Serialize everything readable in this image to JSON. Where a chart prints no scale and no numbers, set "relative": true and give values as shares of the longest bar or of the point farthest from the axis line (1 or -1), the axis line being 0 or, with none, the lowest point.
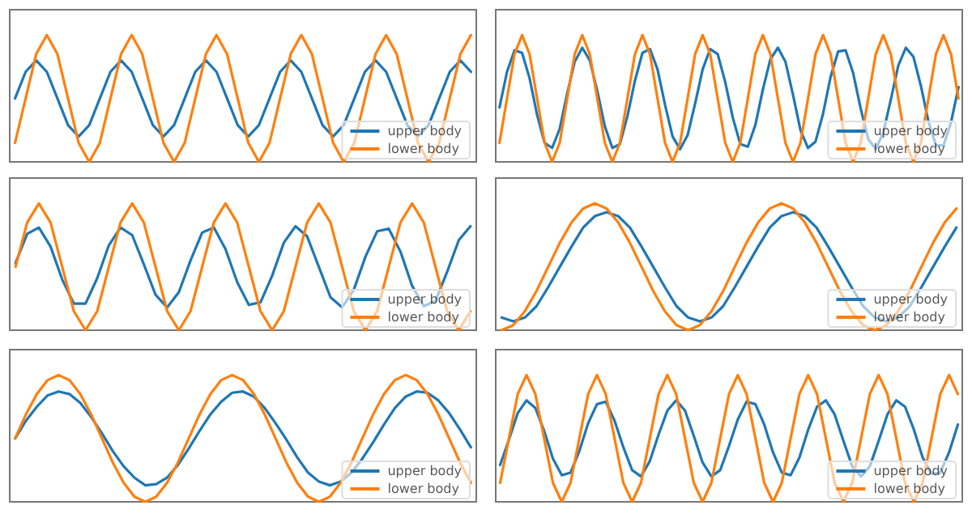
{
  "chart_data": [
    {
      "type": "line",
      "relative": true,
      "tick_labels": false,
      "grid": false,
      "legend": "bottom right",
      "categories": [
        null,
        null,
        null,
        null,
        null,
        null,
        null,
        null,
        null,
        null,
        null,
        null,
        null,
        null,
        null,
        null,
        null,
        null,
        null,
        null,
        null,
        null,
        null,
        null,
        null,
        null,
        null,
        null,
        null,
        null,
        null,
        null,
        null,
        null,
        null,
        null,
        null,
        null,
        null,
        null,
        null,
        null,
        null,
        null
      ],
      "series": [
        {
          "name": "upper body",
          "color": "#1f77b4",
          "values": [
            0.5,
            0.71,
            0.8,
            0.71,
            0.5,
            0.29,
            0.2,
            0.29,
            0.5,
            0.71,
            0.8,
            0.71,
            0.5,
            0.29,
            0.2,
            0.29,
            0.5,
            0.71,
            0.8,
            0.71,
            0.5,
            0.29,
            0.2,
            0.29,
            0.5,
            0.71,
            0.8,
            0.71,
            0.5,
            0.29,
            0.2,
            0.29,
            0.5,
            0.71,
            0.8,
            0.71,
            0.5,
            0.29,
            0.2,
            0.29,
            0.5,
            0.71,
            0.8,
            0.71
          ]
        },
        {
          "name": "lower body",
          "color": "#ff7f0e",
          "values": [
            0.15,
            0.5,
            0.85,
            1,
            0.85,
            0.5,
            0.15,
            0,
            0.15,
            0.5,
            0.85,
            1,
            0.85,
            0.5,
            0.15,
            0,
            0.15,
            0.5,
            0.85,
            1,
            0.85,
            0.5,
            0.15,
            0,
            0.15,
            0.5,
            0.85,
            1,
            0.85,
            0.5,
            0.15,
            0,
            0.15,
            0.5,
            0.85,
            1,
            0.85,
            0.5,
            0.15,
            0,
            0.15,
            0.5,
            0.85,
            1
          ]
        }
      ]
    },
    {
      "type": "line",
      "relative": true,
      "tick_labels": false,
      "grid": false,
      "legend": "bottom right",
      "categories": [
        null,
        null,
        null,
        null,
        null,
        null,
        null,
        null,
        null,
        null,
        null,
        null,
        null,
        null,
        null,
        null,
        null,
        null,
        null,
        null,
        null,
        null,
        null,
        null,
        null,
        null,
        null,
        null,
        null,
        null,
        null,
        null,
        null,
        null,
        null,
        null,
        null,
        null,
        null,
        null,
        null,
        null,
        null,
        null,
        null,
        null,
        null,
        null,
        null,
        null,
        null,
        null,
        null,
        null,
        null,
        null,
        null,
        null,
        null,
        null,
        null,
        null
      ],
      "series": [
        {
          "name": "upper body",
          "color": "#1f77b4",
          "values": [
            0.43,
            0.71,
            0.88,
            0.86,
            0.66,
            0.37,
            0.15,
            0.11,
            0.26,
            0.54,
            0.79,
            0.9,
            0.8,
            0.56,
            0.28,
            0.11,
            0.14,
            0.36,
            0.64,
            0.86,
            0.89,
            0.73,
            0.45,
            0.2,
            0.1,
            0.21,
            0.46,
            0.73,
            0.89,
            0.85,
            0.63,
            0.35,
            0.14,
            0.12,
            0.29,
            0.57,
            0.81,
            0.9,
            0.79,
            0.53,
            0.25,
            0.11,
            0.16,
            0.38,
            0.67,
            0.87,
            0.88,
            0.7,
            0.42,
            0.18,
            0.1,
            0.23,
            0.49,
            0.76,
            0.9,
            0.83,
            0.6,
            0.32,
            0.13,
            0.13,
            0.31,
            0.59
          ]
        },
        {
          "name": "lower body",
          "color": "#ff7f0e",
          "values": [
            0.15,
            0.5,
            0.85,
            1,
            0.85,
            0.5,
            0.15,
            0,
            0.15,
            0.5,
            0.85,
            1,
            0.85,
            0.5,
            0.15,
            0,
            0.15,
            0.5,
            0.85,
            1,
            0.85,
            0.5,
            0.15,
            0,
            0.15,
            0.5,
            0.85,
            1,
            0.85,
            0.5,
            0.15,
            0,
            0.15,
            0.5,
            0.85,
            1,
            0.85,
            0.5,
            0.15,
            0,
            0.15,
            0.5,
            0.85,
            1,
            0.85,
            0.5,
            0.15,
            0,
            0.15,
            0.5,
            0.85,
            1,
            0.85,
            0.5,
            0.15,
            0,
            0.15,
            0.5,
            0.85,
            1,
            0.85,
            0.5
          ]
        }
      ]
    },
    {
      "type": "line",
      "relative": true,
      "tick_labels": false,
      "grid": false,
      "legend": "bottom right",
      "categories": [
        null,
        null,
        null,
        null,
        null,
        null,
        null,
        null,
        null,
        null,
        null,
        null,
        null,
        null,
        null,
        null,
        null,
        null,
        null,
        null,
        null,
        null,
        null,
        null,
        null,
        null,
        null,
        null,
        null,
        null,
        null,
        null,
        null,
        null,
        null,
        null,
        null,
        null,
        null,
        null
      ],
      "series": [
        {
          "name": "upper body",
          "color": "#1f77b4",
          "values": [
            0.53,
            0.76,
            0.81,
            0.66,
            0.4,
            0.21,
            0.21,
            0.41,
            0.67,
            0.81,
            0.75,
            0.52,
            0.28,
            0.18,
            0.3,
            0.55,
            0.77,
            0.81,
            0.64,
            0.38,
            0.2,
            0.22,
            0.43,
            0.69,
            0.82,
            0.74,
            0.5,
            0.26,
            0.18,
            0.32,
            0.58,
            0.78,
            0.8,
            0.62,
            0.35,
            0.19,
            0.23,
            0.46,
            0.71,
            0.82
          ]
        },
        {
          "name": "lower body",
          "color": "#ff7f0e",
          "values": [
            0.5,
            0.85,
            1,
            0.85,
            0.5,
            0.15,
            0,
            0.15,
            0.5,
            0.85,
            1,
            0.85,
            0.5,
            0.15,
            0,
            0.15,
            0.5,
            0.85,
            1,
            0.85,
            0.5,
            0.15,
            0,
            0.15,
            0.5,
            0.85,
            1,
            0.85,
            0.5,
            0.15,
            0,
            0.15,
            0.5,
            0.85,
            1,
            0.85,
            0.5,
            0.15,
            0,
            0.15
          ]
        }
      ]
    },
    {
      "type": "line",
      "relative": true,
      "tick_labels": false,
      "grid": false,
      "legend": "bottom right",
      "categories": [
        null,
        null,
        null,
        null,
        null,
        null,
        null,
        null,
        null,
        null,
        null,
        null,
        null,
        null,
        null,
        null,
        null,
        null,
        null,
        null,
        null,
        null,
        null,
        null,
        null,
        null,
        null,
        null,
        null,
        null,
        null,
        null,
        null,
        null,
        null,
        null,
        null,
        null,
        null,
        null
      ],
      "series": [
        {
          "name": "upper body",
          "color": "#1f77b4",
          "values": [
            0.1,
            0.07,
            0.1,
            0.19,
            0.34,
            0.5,
            0.66,
            0.81,
            0.9,
            0.93,
            0.9,
            0.81,
            0.66,
            0.5,
            0.34,
            0.19,
            0.1,
            0.07,
            0.1,
            0.19,
            0.34,
            0.5,
            0.66,
            0.81,
            0.9,
            0.93,
            0.9,
            0.81,
            0.66,
            0.5,
            0.34,
            0.19,
            0.1,
            0.07,
            0.1,
            0.19,
            0.34,
            0.5,
            0.66,
            0.81
          ]
        },
        {
          "name": "lower body",
          "color": "#ff7f0e",
          "values": [
            0,
            0.04,
            0.15,
            0.31,
            0.5,
            0.69,
            0.85,
            0.96,
            1,
            0.96,
            0.85,
            0.69,
            0.5,
            0.31,
            0.15,
            0.04,
            0,
            0.04,
            0.15,
            0.31,
            0.5,
            0.69,
            0.85,
            0.96,
            1,
            0.96,
            0.85,
            0.69,
            0.5,
            0.31,
            0.15,
            0.04,
            0,
            0.04,
            0.15,
            0.31,
            0.5,
            0.69,
            0.85,
            0.96
          ]
        }
      ]
    },
    {
      "type": "line",
      "relative": true,
      "tick_labels": false,
      "grid": false,
      "legend": "bottom right",
      "categories": [
        null,
        null,
        null,
        null,
        null,
        null,
        null,
        null,
        null,
        null,
        null,
        null,
        null,
        null,
        null,
        null,
        null,
        null,
        null,
        null,
        null,
        null,
        null,
        null,
        null,
        null,
        null,
        null,
        null,
        null,
        null,
        null,
        null,
        null,
        null,
        null,
        null,
        null,
        null,
        null,
        null,
        null,
        null
      ],
      "series": [
        {
          "name": "upper body",
          "color": "#1f77b4",
          "values": [
            0.5,
            0.64,
            0.75,
            0.84,
            0.87,
            0.85,
            0.78,
            0.67,
            0.54,
            0.4,
            0.28,
            0.19,
            0.13,
            0.14,
            0.19,
            0.29,
            0.42,
            0.56,
            0.69,
            0.79,
            0.86,
            0.87,
            0.83,
            0.74,
            0.62,
            0.49,
            0.35,
            0.23,
            0.16,
            0.13,
            0.16,
            0.23,
            0.34,
            0.47,
            0.61,
            0.74,
            0.83,
            0.87,
            0.86,
            0.8,
            0.7,
            0.57,
            0.43
          ]
        },
        {
          "name": "lower body",
          "color": "#ff7f0e",
          "values": [
            0.5,
            0.69,
            0.85,
            0.96,
            1,
            0.96,
            0.85,
            0.69,
            0.5,
            0.31,
            0.15,
            0.04,
            0,
            0.04,
            0.15,
            0.31,
            0.5,
            0.69,
            0.85,
            0.96,
            1,
            0.96,
            0.85,
            0.69,
            0.5,
            0.31,
            0.15,
            0.04,
            0,
            0.04,
            0.15,
            0.31,
            0.5,
            0.69,
            0.85,
            0.96,
            1,
            0.96,
            0.85,
            0.69,
            0.5,
            0.31,
            0.15
          ]
        }
      ]
    },
    {
      "type": "line",
      "relative": true,
      "tick_labels": false,
      "grid": false,
      "legend": "bottom right",
      "categories": [
        null,
        null,
        null,
        null,
        null,
        null,
        null,
        null,
        null,
        null,
        null,
        null,
        null,
        null,
        null,
        null,
        null,
        null,
        null,
        null,
        null,
        null,
        null,
        null,
        null,
        null,
        null,
        null,
        null,
        null,
        null,
        null,
        null,
        null,
        null,
        null,
        null,
        null,
        null,
        null,
        null,
        null,
        null,
        null,
        null,
        null,
        null,
        null,
        null,
        null,
        null,
        null,
        null
      ],
      "series": [
        {
          "name": "upper body",
          "color": "#1f77b4",
          "values": [
            0.29,
            0.49,
            0.7,
            0.8,
            0.74,
            0.56,
            0.34,
            0.21,
            0.23,
            0.4,
            0.62,
            0.77,
            0.79,
            0.64,
            0.43,
            0.25,
            0.2,
            0.32,
            0.53,
            0.72,
            0.8,
            0.72,
            0.52,
            0.31,
            0.2,
            0.25,
            0.44,
            0.65,
            0.79,
            0.77,
            0.61,
            0.39,
            0.23,
            0.21,
            0.35,
            0.57,
            0.75,
            0.8,
            0.69,
            0.48,
            0.28,
            0.2,
            0.28,
            0.48,
            0.69,
            0.8,
            0.75,
            0.57,
            0.35,
            0.22,
            0.23,
            0.39,
            0.61
          ]
        },
        {
          "name": "lower body",
          "color": "#ff7f0e",
          "values": [
            0.15,
            0.5,
            0.85,
            1,
            0.85,
            0.5,
            0.15,
            0,
            0.15,
            0.5,
            0.85,
            1,
            0.85,
            0.5,
            0.15,
            0,
            0.15,
            0.5,
            0.85,
            1,
            0.85,
            0.5,
            0.15,
            0,
            0.15,
            0.5,
            0.85,
            1,
            0.85,
            0.5,
            0.15,
            0,
            0.15,
            0.5,
            0.85,
            1,
            0.85,
            0.5,
            0.15,
            0,
            0.15,
            0.5,
            0.85,
            1,
            0.85,
            0.5,
            0.15,
            0,
            0.15,
            0.5,
            0.85,
            1,
            0.85
          ]
        }
      ]
    }
  ]
}
